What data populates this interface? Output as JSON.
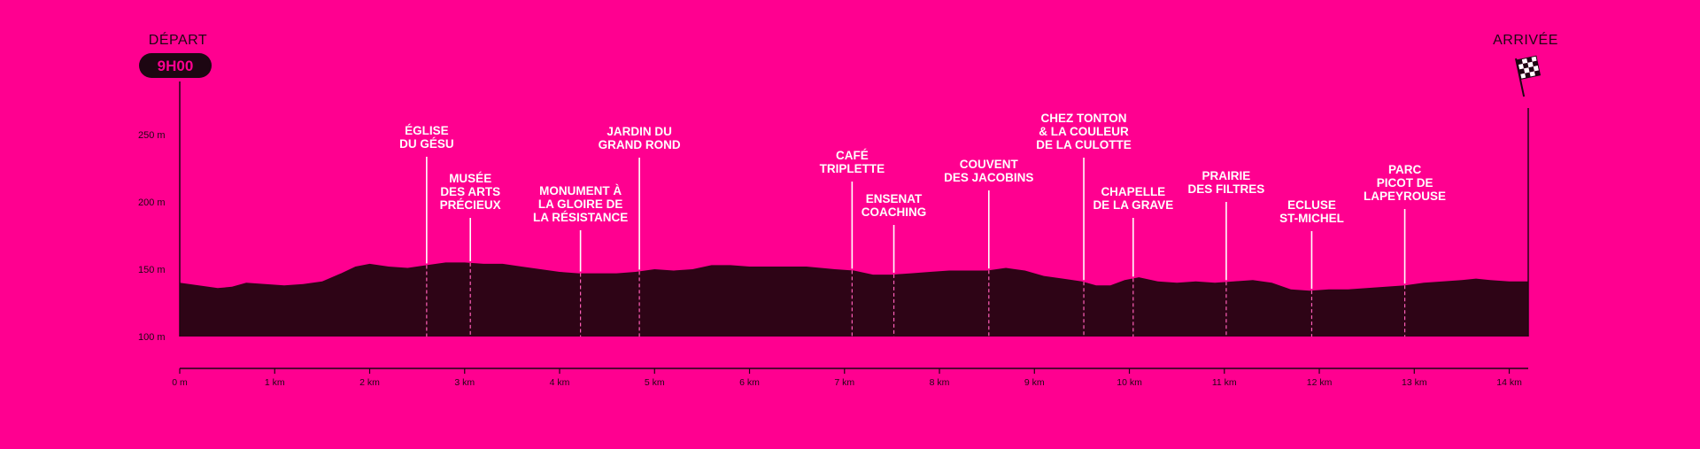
{
  "chart_data": {
    "type": "area",
    "title": "",
    "xlabel": "",
    "ylabel": "",
    "x_unit": "km",
    "y_unit": "m",
    "xlim": [
      0,
      14.2
    ],
    "ylim": [
      100,
      270
    ],
    "grid": false,
    "start": {
      "label": "DÉPART",
      "time": "9H00"
    },
    "finish": {
      "label": "ARRIVÉE"
    },
    "x_ticks": [
      {
        "v": 0,
        "label": "0 m"
      },
      {
        "v": 1,
        "label": "1 km"
      },
      {
        "v": 2,
        "label": "2 km"
      },
      {
        "v": 3,
        "label": "3 km"
      },
      {
        "v": 4,
        "label": "4 km"
      },
      {
        "v": 5,
        "label": "5 km"
      },
      {
        "v": 6,
        "label": "6 km"
      },
      {
        "v": 7,
        "label": "7 km"
      },
      {
        "v": 8,
        "label": "8 km"
      },
      {
        "v": 9,
        "label": "9 km"
      },
      {
        "v": 10,
        "label": "10 km"
      },
      {
        "v": 11,
        "label": "11 km"
      },
      {
        "v": 12,
        "label": "12 km"
      },
      {
        "v": 13,
        "label": "13 km"
      },
      {
        "v": 14,
        "label": "14 km"
      }
    ],
    "y_ticks": [
      {
        "v": 100,
        "label": "100 m"
      },
      {
        "v": 150,
        "label": "150 m"
      },
      {
        "v": 200,
        "label": "200 m"
      },
      {
        "v": 250,
        "label": "250 m"
      }
    ],
    "profile": {
      "x": [
        0,
        0.2,
        0.4,
        0.55,
        0.7,
        0.9,
        1.1,
        1.3,
        1.5,
        1.7,
        1.85,
        2.0,
        2.2,
        2.4,
        2.6,
        2.8,
        3.0,
        3.2,
        3.4,
        3.6,
        3.8,
        4.0,
        4.2,
        4.4,
        4.6,
        4.8,
        5.0,
        5.2,
        5.4,
        5.6,
        5.8,
        6.0,
        6.3,
        6.6,
        6.9,
        7.1,
        7.3,
        7.5,
        7.7,
        7.9,
        8.1,
        8.3,
        8.5,
        8.7,
        8.9,
        9.1,
        9.3,
        9.5,
        9.65,
        9.8,
        9.95,
        10.1,
        10.3,
        10.5,
        10.7,
        10.9,
        11.1,
        11.3,
        11.5,
        11.7,
        11.9,
        12.1,
        12.3,
        12.5,
        12.7,
        12.9,
        13.1,
        13.3,
        13.5,
        13.65,
        13.8,
        14.0,
        14.2
      ],
      "y": [
        140,
        138,
        136,
        137,
        140,
        139,
        138,
        139,
        141,
        147,
        152,
        154,
        152,
        151,
        153,
        155,
        155,
        154,
        154,
        152,
        150,
        148,
        147,
        147,
        147,
        148,
        150,
        149,
        150,
        153,
        153,
        152,
        152,
        152,
        150,
        149,
        146,
        146,
        147,
        148,
        149,
        149,
        149,
        151,
        149,
        145,
        143,
        141,
        138,
        138,
        142,
        144,
        141,
        140,
        141,
        140,
        141,
        142,
        140,
        135,
        134,
        135,
        135,
        136,
        137,
        138,
        140,
        141,
        142,
        143,
        142,
        141,
        141
      ]
    },
    "points": [
      {
        "x": 2.6,
        "label": [
          "ÉGLISE",
          "DU GÉSU"
        ]
      },
      {
        "x": 3.06,
        "label": [
          "MUSÉE",
          "DES ARTS",
          "PRÉCIEUX"
        ]
      },
      {
        "x": 4.22,
        "label": [
          "MONUMENT À",
          "LA GLOIRE DE",
          "LA RÉSISTANCE"
        ]
      },
      {
        "x": 4.84,
        "label": [
          "JARDIN DU",
          "GRAND ROND"
        ]
      },
      {
        "x": 7.08,
        "label": [
          "CAFÉ",
          "TRIPLETTE"
        ]
      },
      {
        "x": 7.52,
        "label": [
          "ENSENAT",
          "COACHING"
        ]
      },
      {
        "x": 8.52,
        "label": [
          "COUVENT",
          "DES JACOBINS"
        ]
      },
      {
        "x": 9.52,
        "label": [
          "CHEZ TONTON",
          "& LA COULEUR",
          "DE LA CULOTTE"
        ]
      },
      {
        "x": 10.04,
        "label": [
          "CHAPELLE",
          "DE LA GRAVE"
        ]
      },
      {
        "x": 11.02,
        "label": [
          "PRAIRIE",
          "DES FILTRES"
        ]
      },
      {
        "x": 11.92,
        "label": [
          "ECLUSE",
          "ST-MICHEL"
        ]
      },
      {
        "x": 12.9,
        "label": [
          "PARC",
          "PICOT DE",
          "LAPEYROUSE"
        ]
      }
    ],
    "colors": {
      "background": "#ff0090",
      "area": "#2e0416",
      "text_dark": "#1d0612",
      "text_light": "#ffffff"
    }
  }
}
